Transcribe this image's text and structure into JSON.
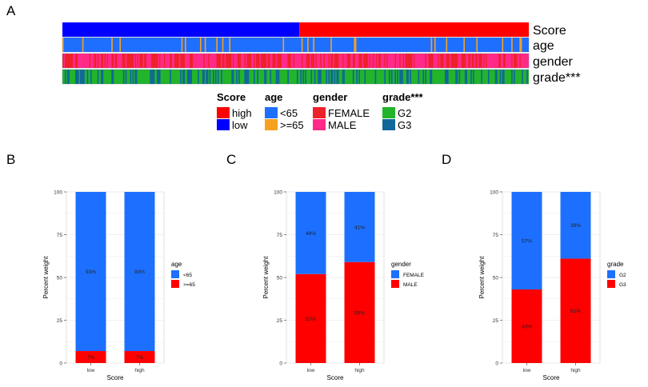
{
  "panels": {
    "a": "A",
    "b": "B",
    "c": "C",
    "d": "D"
  },
  "colors": {
    "score_high": "#ff0000",
    "score_low": "#0000ff",
    "age_lt65": "#1f6fff",
    "age_ge65": "#f7a020",
    "gender_female": "#f0202a",
    "gender_male": "#ff2a8a",
    "grade_g2": "#22b42a",
    "grade_g3": "#10679a",
    "bar_top": "#1d70ff",
    "bar_bottom": "#ff0000",
    "grid": "#ebebeb",
    "panel_border": "#d9d9d9"
  },
  "heatmap": {
    "n_samples": 400,
    "score_split_fraction": 0.508,
    "row_labels": [
      "Score",
      "age",
      "gender",
      "grade***"
    ],
    "row_data": {
      "age": {
        "minor_fraction": 0.07
      },
      "gender": {
        "minor_fraction": 0.55
      },
      "grade": {
        "minor_fraction": 0.35
      }
    },
    "legend": [
      {
        "title": "Score",
        "entries": [
          {
            "label": "high",
            "color_key": "score_high"
          },
          {
            "label": "low",
            "color_key": "score_low"
          }
        ]
      },
      {
        "title": "age",
        "entries": [
          {
            "label": "<65",
            "color_key": "age_lt65"
          },
          {
            "label": ">=65",
            "color_key": "age_ge65"
          }
        ]
      },
      {
        "title": "gender",
        "entries": [
          {
            "label": "FEMALE",
            "color_key": "gender_female"
          },
          {
            "label": "MALE",
            "color_key": "gender_male"
          }
        ]
      },
      {
        "title": "grade***",
        "entries": [
          {
            "label": "G2",
            "color_key": "grade_g2"
          },
          {
            "label": "G3",
            "color_key": "grade_g3"
          }
        ]
      }
    ]
  },
  "chart_data": [
    {
      "type": "bar",
      "panel": "B",
      "stacked": true,
      "categories": [
        "low",
        "high"
      ],
      "series": [
        {
          "name": "<65",
          "values": [
            93,
            93
          ],
          "labels": [
            "93%",
            "93%"
          ]
        },
        {
          "name": ">=65",
          "values": [
            7,
            7
          ],
          "labels": [
            "7%",
            "7%"
          ]
        }
      ],
      "xlabel": "Score",
      "ylabel": "Percent weight",
      "legend_title": "age",
      "ylim": [
        0,
        100
      ],
      "yticks": [
        "0",
        "25",
        "50",
        "75",
        "100"
      ]
    },
    {
      "type": "bar",
      "panel": "C",
      "stacked": true,
      "categories": [
        "low",
        "high"
      ],
      "series": [
        {
          "name": "FEMALE",
          "values": [
            48,
            41
          ],
          "labels": [
            "48%",
            "41%"
          ]
        },
        {
          "name": "MALE",
          "values": [
            52,
            59
          ],
          "labels": [
            "52%",
            "59%"
          ]
        }
      ],
      "xlabel": "Score",
      "ylabel": "Percent weight",
      "legend_title": "gender",
      "ylim": [
        0,
        100
      ],
      "yticks": [
        "0",
        "25",
        "50",
        "75",
        "100"
      ]
    },
    {
      "type": "bar",
      "panel": "D",
      "stacked": true,
      "categories": [
        "low",
        "high"
      ],
      "series": [
        {
          "name": "G2",
          "values": [
            57,
            39
          ],
          "labels": [
            "57%",
            "39%"
          ]
        },
        {
          "name": "G3",
          "values": [
            43,
            61
          ],
          "labels": [
            "43%",
            "61%"
          ]
        }
      ],
      "xlabel": "Score",
      "ylabel": "Percent weight",
      "legend_title": "grade",
      "ylim": [
        0,
        100
      ],
      "yticks": [
        "0",
        "25",
        "50",
        "75",
        "100"
      ]
    }
  ]
}
